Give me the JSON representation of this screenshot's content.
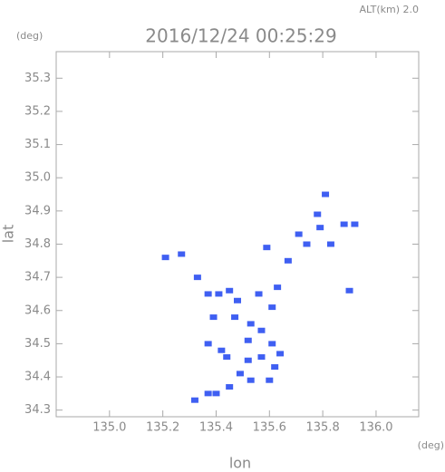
{
  "chart_data": {
    "type": "scatter",
    "title": "2016/12/24 00:25:29",
    "subtitle": "ALT(km) 2.0",
    "y_unit": "(deg)",
    "x_unit": "(deg)",
    "xlabel": "lon",
    "ylabel": "lat",
    "color": "#3f5ff2",
    "x": [
      135.81,
      135.78,
      135.88,
      135.92,
      135.79,
      135.71,
      135.74,
      135.83,
      135.59,
      135.27,
      135.21,
      135.67,
      135.9,
      135.33,
      135.37,
      135.41,
      135.45,
      135.48,
      135.63,
      135.56,
      135.61,
      135.39,
      135.47,
      135.53,
      135.57,
      135.52,
      135.61,
      135.64,
      135.57,
      135.52,
      135.44,
      135.62,
      135.49,
      135.53,
      135.45,
      135.4,
      135.37,
      135.32,
      135.6,
      135.42,
      135.37
    ],
    "y": [
      34.95,
      34.89,
      34.86,
      34.86,
      34.85,
      34.83,
      34.8,
      34.8,
      34.79,
      34.77,
      34.76,
      34.75,
      34.66,
      34.7,
      34.65,
      34.65,
      34.66,
      34.63,
      34.67,
      34.65,
      34.61,
      34.58,
      34.58,
      34.56,
      34.54,
      34.51,
      34.5,
      34.47,
      34.46,
      34.45,
      34.46,
      34.43,
      34.41,
      34.39,
      34.37,
      34.35,
      34.35,
      34.33,
      34.39,
      34.48,
      34.5
    ],
    "xlim": [
      134.8,
      136.16
    ],
    "ylim": [
      34.28,
      35.38
    ],
    "xticks": [
      {
        "value": 135,
        "label": "135.0"
      },
      135.2,
      135.4,
      135.6,
      135.8,
      {
        "value": 136,
        "label": "136.0"
      }
    ],
    "yticks": [
      34.3,
      34.4,
      34.5,
      34.6,
      34.7,
      34.8,
      34.9,
      {
        "value": 35,
        "label": "35.0"
      },
      35.1,
      35.2,
      35.3
    ]
  }
}
